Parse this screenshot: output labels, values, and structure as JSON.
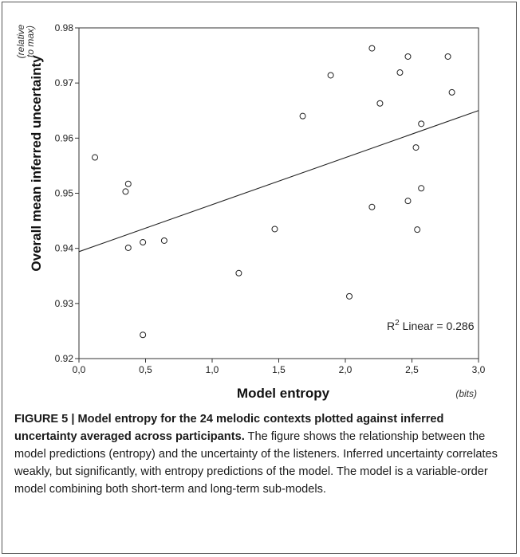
{
  "caption": {
    "title": "FIGURE 5 | Model entropy for the 24 melodic contexts plotted against inferred uncertainty averaged across participants.",
    "body": " The figure shows the relationship between the model predictions (entropy) and the uncertainty of the listeners. Inferred uncertainty correlates weakly, but significantly, with entropy predictions of the model. The model is a variable-order model combining both short-term and long-term sub-models."
  },
  "chart_data": {
    "type": "scatter",
    "xlabel": "Model entropy",
    "xunit": "(bits)",
    "ylabel": "Overall mean inferred uncertainty",
    "yunit_line1": "(relative",
    "yunit_line2": "to max)",
    "xlim": [
      0.0,
      3.0
    ],
    "ylim": [
      0.92,
      0.98
    ],
    "xticks": [
      "0,0",
      "0,5",
      "1,0",
      "1,5",
      "2,0",
      "2,5",
      "3,0"
    ],
    "xtick_values": [
      0.0,
      0.5,
      1.0,
      1.5,
      2.0,
      2.5,
      3.0
    ],
    "yticks": [
      "0.92",
      "0.93",
      "0.94",
      "0.95",
      "0.96",
      "0.97",
      "0.98"
    ],
    "ytick_values": [
      0.92,
      0.93,
      0.94,
      0.95,
      0.96,
      0.97,
      0.98
    ],
    "grid": false,
    "points": [
      {
        "x": 0.12,
        "y": 0.9565
      },
      {
        "x": 0.35,
        "y": 0.9503
      },
      {
        "x": 0.37,
        "y": 0.9517
      },
      {
        "x": 0.37,
        "y": 0.9401
      },
      {
        "x": 0.48,
        "y": 0.9411
      },
      {
        "x": 0.48,
        "y": 0.9243
      },
      {
        "x": 0.64,
        "y": 0.9414
      },
      {
        "x": 1.2,
        "y": 0.9355
      },
      {
        "x": 1.47,
        "y": 0.9435
      },
      {
        "x": 1.68,
        "y": 0.964
      },
      {
        "x": 1.89,
        "y": 0.9714
      },
      {
        "x": 2.03,
        "y": 0.9313
      },
      {
        "x": 2.2,
        "y": 0.9763
      },
      {
        "x": 2.2,
        "y": 0.9475
      },
      {
        "x": 2.26,
        "y": 0.9663
      },
      {
        "x": 2.41,
        "y": 0.9719
      },
      {
        "x": 2.47,
        "y": 0.9748
      },
      {
        "x": 2.47,
        "y": 0.9486
      },
      {
        "x": 2.53,
        "y": 0.9583
      },
      {
        "x": 2.54,
        "y": 0.9434
      },
      {
        "x": 2.57,
        "y": 0.9626
      },
      {
        "x": 2.57,
        "y": 0.9509
      },
      {
        "x": 2.77,
        "y": 0.9748
      },
      {
        "x": 2.8,
        "y": 0.9683
      }
    ],
    "fit_line": {
      "x": [
        0.0,
        3.0
      ],
      "y": [
        0.9394,
        0.965
      ]
    },
    "annotation": {
      "base": "R",
      "sup": "2",
      "rest": " Linear = 0.286"
    }
  }
}
